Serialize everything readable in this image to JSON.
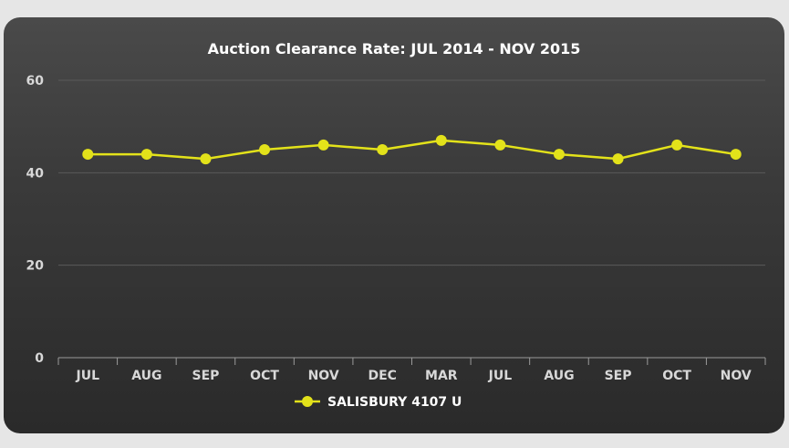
{
  "chart_data": {
    "type": "line",
    "title": "Auction Clearance Rate: JUL 2014 - NOV 2015",
    "categories": [
      "JUL",
      "AUG",
      "SEP",
      "OCT",
      "NOV",
      "DEC",
      "MAR",
      "JUL",
      "AUG",
      "SEP",
      "OCT",
      "NOV"
    ],
    "series": [
      {
        "name": "SALISBURY 4107 U",
        "values": [
          44,
          44,
          43,
          45,
          46,
          45,
          47,
          46,
          44,
          43,
          46,
          44
        ],
        "color": "#e3e21a"
      }
    ],
    "ylim": [
      0,
      60
    ],
    "yticks": [
      "0",
      "20",
      "40",
      "60"
    ],
    "grid": true,
    "legend_position": "bottom"
  }
}
